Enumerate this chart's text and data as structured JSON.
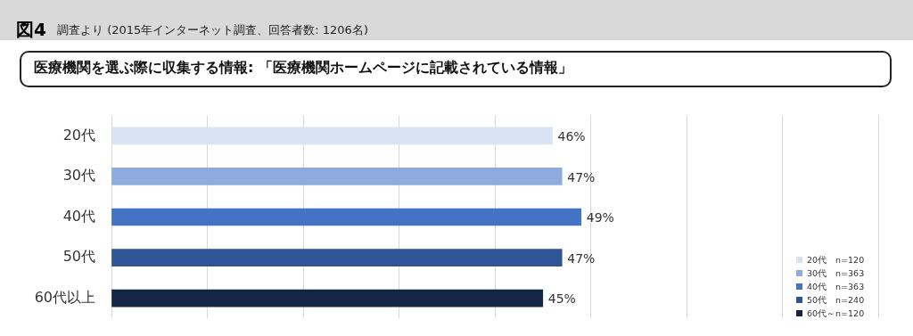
{
  "chart_data": {
    "type": "bar",
    "orientation": "horizontal",
    "stacked": true,
    "title": "図4",
    "subtitle": "調査より (2015年インターネット調査、回答者数: 1206名)",
    "annotations": [
      "医療機関を選ぶ際に収集する情報: 「医療機関ホームページに記載されている情報」"
    ],
    "categories": [
      "20代",
      "30代",
      "40代",
      "50代",
      "60代以上"
    ],
    "series": [
      {
        "name": "20代　n=120",
        "color": "#dae3f3",
        "values": [
          46,
          null,
          null,
          null,
          null
        ],
        "value_labels": [
          "46%",
          null,
          null,
          null,
          null
        ]
      },
      {
        "name": "30代　n=363",
        "color": "#8faadc",
        "values": [
          null,
          47,
          null,
          null,
          null
        ],
        "value_labels": [
          null,
          "47%",
          null,
          null,
          null
        ]
      },
      {
        "name": "40代　n=363",
        "color": "#4472c4",
        "values": [
          null,
          null,
          49,
          null,
          null
        ],
        "value_labels": [
          null,
          null,
          "49%",
          null,
          null
        ]
      },
      {
        "name": "50代　n=240",
        "color": "#2f5597",
        "values": [
          null,
          null,
          null,
          47,
          null
        ],
        "value_labels": [
          null,
          null,
          null,
          "47%",
          null
        ]
      },
      {
        "name": "60代～n=120",
        "color": "#152544",
        "values": [
          null,
          null,
          null,
          null,
          45
        ],
        "value_labels": [
          null,
          null,
          null,
          null,
          "45%"
        ]
      }
    ],
    "xlim": [
      0,
      80
    ],
    "xticks": [
      {
        "value": 0,
        "label": null
      },
      {
        "value": 10,
        "label": null
      },
      {
        "value": 20,
        "label": null
      },
      {
        "value": 30,
        "label": null
      },
      {
        "value": 40,
        "label": null
      },
      {
        "value": 50,
        "label": null
      },
      {
        "value": 60,
        "label": null
      },
      {
        "value": 70,
        "label": null
      },
      {
        "value": 80,
        "label": null
      }
    ],
    "tick_labels": "y",
    "grid": "x",
    "legend": "bottom right"
  }
}
